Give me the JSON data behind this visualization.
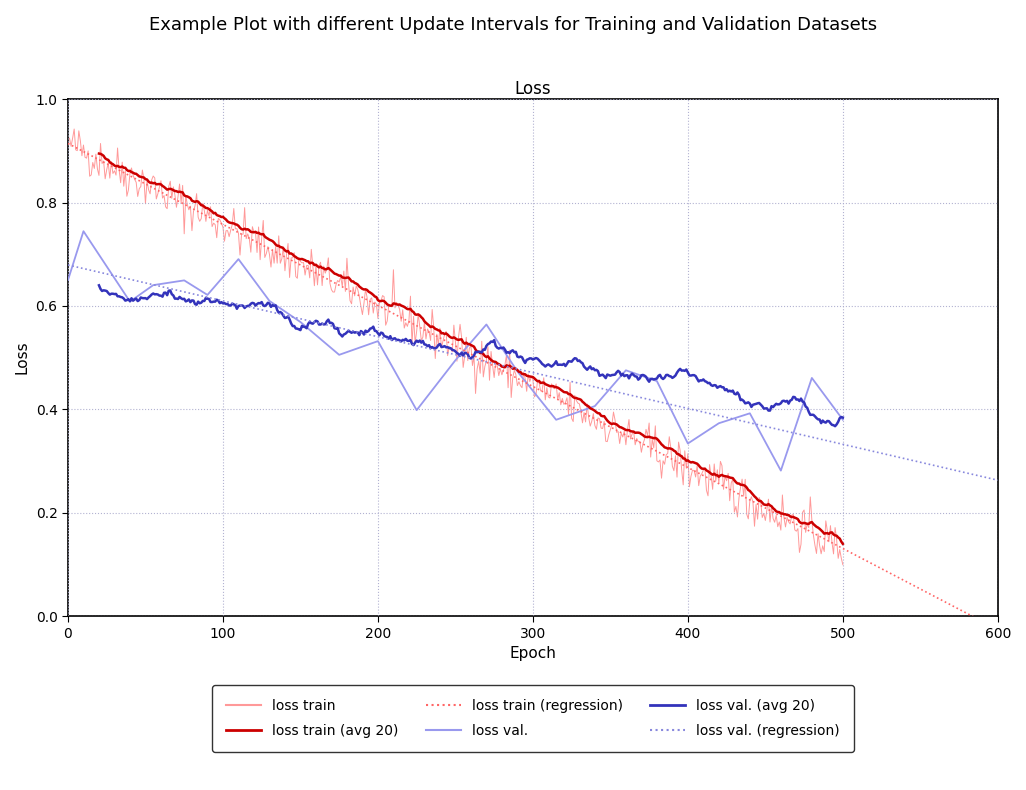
{
  "title": "Example Plot with different Update Intervals for Training and Validation Datasets",
  "subplot_title": "Loss",
  "xlabel": "Epoch",
  "ylabel": "Loss",
  "xlim": [
    0,
    600
  ],
  "ylim": [
    0.0,
    1.0
  ],
  "xticks": [
    0,
    100,
    200,
    300,
    400,
    500,
    600
  ],
  "yticks": [
    0.0,
    0.2,
    0.4,
    0.6,
    0.8,
    1.0
  ],
  "train_color": "#FF9999",
  "train_avg_color": "#CC0000",
  "train_reg_color": "#FF6666",
  "val_color": "#9999EE",
  "val_avg_color": "#3333BB",
  "val_reg_color": "#8888DD",
  "n_train": 500,
  "seed": 42,
  "figsize": [
    10.26,
    7.9
  ],
  "dpi": 100,
  "grid_color": "#AAAACC",
  "background_color": "#FFFFFF"
}
